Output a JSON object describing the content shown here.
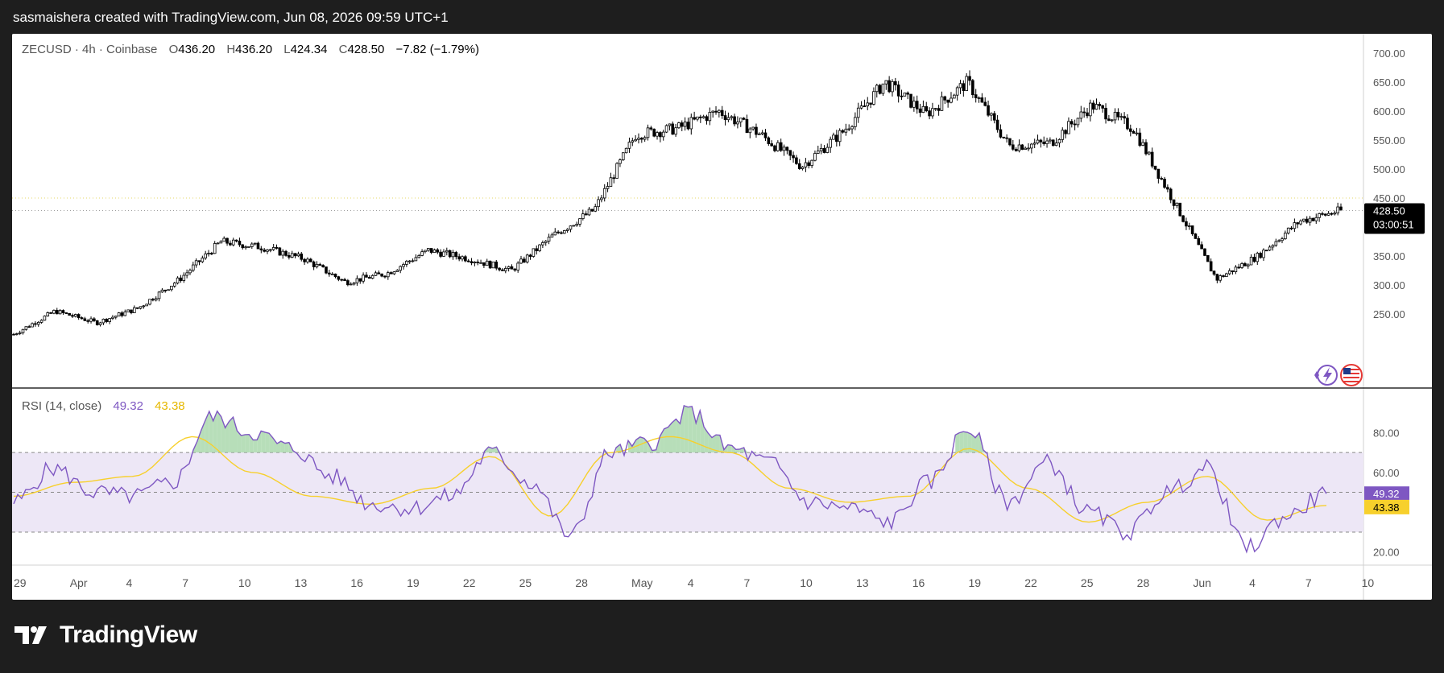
{
  "header": {
    "attribution": "sasmaishera created with TradingView.com, Jun 08, 2026 09:59 UTC+1"
  },
  "legend": {
    "symbol": "ZECUSD · 4h · Coinbase",
    "o_label": "O",
    "o_value": "436.20",
    "h_label": "H",
    "h_value": "436.20",
    "l_label": "L",
    "l_value": "424.34",
    "c_label": "C",
    "c_value": "428.50",
    "change": "−7.82 (−1.79%)"
  },
  "price_badge": {
    "price": "428.50",
    "countdown": "03:00:51"
  },
  "rsi_legend": {
    "label": "RSI (14, close)",
    "rsi_value": "49.32",
    "ma_value": "43.38"
  },
  "colors": {
    "rsi_line": "#7e57c2",
    "rsi_ma": "#f7d02c",
    "rsi_band": "#ede7f6",
    "candle": "#000000",
    "price_badge_bg": "#000000"
  },
  "icons": [
    "lightning-icon",
    "us-flag-icon",
    "tradingview-logo-icon"
  ],
  "brand": "TradingView",
  "chart_data": [
    {
      "type": "candlestick",
      "title": "ZECUSD · 4h · Coinbase",
      "x_ticks": [
        "29",
        "Apr",
        "4",
        "7",
        "10",
        "13",
        "16",
        "19",
        "22",
        "25",
        "28",
        "May",
        "4",
        "7",
        "10",
        "13",
        "16",
        "19",
        "22",
        "25",
        "28",
        "Jun",
        "4",
        "7",
        "10"
      ],
      "y_ticks": [
        "700.00",
        "650.00",
        "600.00",
        "550.00",
        "500.00",
        "450.00",
        "350.00",
        "300.00",
        "250.00"
      ],
      "ylim": [
        220,
        735
      ],
      "last_price": 428.5,
      "high_line": 450,
      "x": [
        "Mar 29",
        "Apr 1",
        "Apr 4",
        "Apr 7",
        "Apr 9",
        "Apr 10",
        "Apr 13",
        "Apr 16",
        "Apr 19",
        "Apr 22",
        "Apr 25",
        "Apr 28",
        "May 1",
        "May 4",
        "May 6",
        "May 6.5",
        "May 7",
        "May 10",
        "May 13",
        "May 16",
        "May 19",
        "May 20",
        "May 22",
        "May 25",
        "May 28",
        "May 31",
        "Jun 3",
        "Jun 4",
        "Jun 5",
        "Jun 5.5",
        "Jun 6",
        "Jun 7",
        "Jun 8"
      ],
      "close": [
        215,
        255,
        235,
        260,
        310,
        375,
        365,
        345,
        305,
        320,
        360,
        345,
        325,
        385,
        430,
        560,
        570,
        600,
        560,
        505,
        565,
        650,
        595,
        650,
        540,
        545,
        610,
        570,
        440,
        310,
        350,
        410,
        428.5
      ]
    },
    {
      "type": "line",
      "title": "RSI (14, close)",
      "y_ticks": [
        "80.00",
        "60.00",
        "20.00"
      ],
      "ylim": [
        15,
        100
      ],
      "bands": [
        70,
        50,
        30
      ],
      "series": [
        {
          "name": "RSI",
          "x": [
            "Mar 29",
            "Mar 31",
            "Apr 2",
            "Apr 4",
            "Apr 6",
            "Apr 8",
            "Apr 10",
            "Apr 12",
            "Apr 15",
            "Apr 18",
            "Apr 21",
            "Apr 24",
            "Apr 27",
            "Apr 29",
            "May 2",
            "May 4",
            "May 6",
            "May 8",
            "May 10",
            "May 12",
            "May 14",
            "May 16",
            "May 18",
            "May 20",
            "May 22",
            "May 24",
            "May 26",
            "May 28",
            "May 30",
            "Jun 1",
            "Jun 3",
            "Jun 5",
            "Jun 7",
            "Jun 8"
          ],
          "values": [
            45,
            62,
            50,
            48,
            55,
            88,
            80,
            72,
            58,
            44,
            42,
            48,
            70,
            55,
            28,
            70,
            75,
            90,
            72,
            65,
            45,
            42,
            35,
            55,
            82,
            45,
            65,
            40,
            30,
            50,
            62,
            22,
            38,
            49.32
          ]
        },
        {
          "name": "RSI-based MA",
          "x": [
            "Mar 29",
            "Apr 2",
            "Apr 6",
            "Apr 10",
            "Apr 14",
            "Apr 18",
            "Apr 22",
            "Apr 26",
            "Apr 30",
            "May 2",
            "May 5",
            "May 8",
            "May 11",
            "May 14",
            "May 17",
            "May 20",
            "May 23",
            "May 26",
            "May 29",
            "Jun 1",
            "Jun 4",
            "Jun 6",
            "Jun 8"
          ],
          "values": [
            48,
            55,
            58,
            78,
            60,
            48,
            44,
            52,
            68,
            38,
            70,
            78,
            70,
            52,
            45,
            48,
            72,
            52,
            35,
            45,
            58,
            36,
            43.38
          ]
        }
      ]
    }
  ]
}
